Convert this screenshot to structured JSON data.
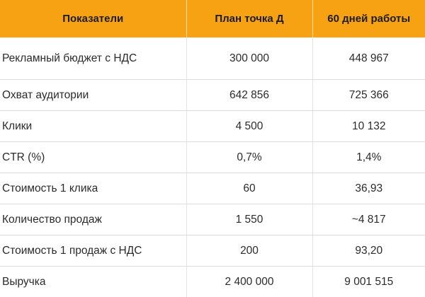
{
  "table": {
    "headers": [
      "Показатели",
      "План точка Д",
      "60 дней работы"
    ],
    "rows": [
      {
        "metric": "Рекламный бюджет с НДС",
        "plan": "300 000",
        "actual": "448 967"
      },
      {
        "metric": "Охват аудитории",
        "plan": "642 856",
        "actual": "725 366"
      },
      {
        "metric": "Клики",
        "plan": "4 500",
        "actual": "10 132"
      },
      {
        "metric": "CTR (%)",
        "plan": "0,7%",
        "actual": "1,4%"
      },
      {
        "metric": "Стоимость 1 клика",
        "plan": "60",
        "actual": "36,93"
      },
      {
        "metric": "Количество продаж",
        "plan": "1 550",
        "actual": "~4 817"
      },
      {
        "metric": "Стоимость 1 продаж с НДС",
        "plan": "200",
        "actual": "93,20"
      },
      {
        "metric": "Выручка",
        "plan": "2 400 000",
        "actual": "9 001 515"
      }
    ]
  },
  "colors": {
    "header_bg": "#f7a212",
    "text": "#2b2b2b",
    "row_divider": "#dcdcdc"
  }
}
